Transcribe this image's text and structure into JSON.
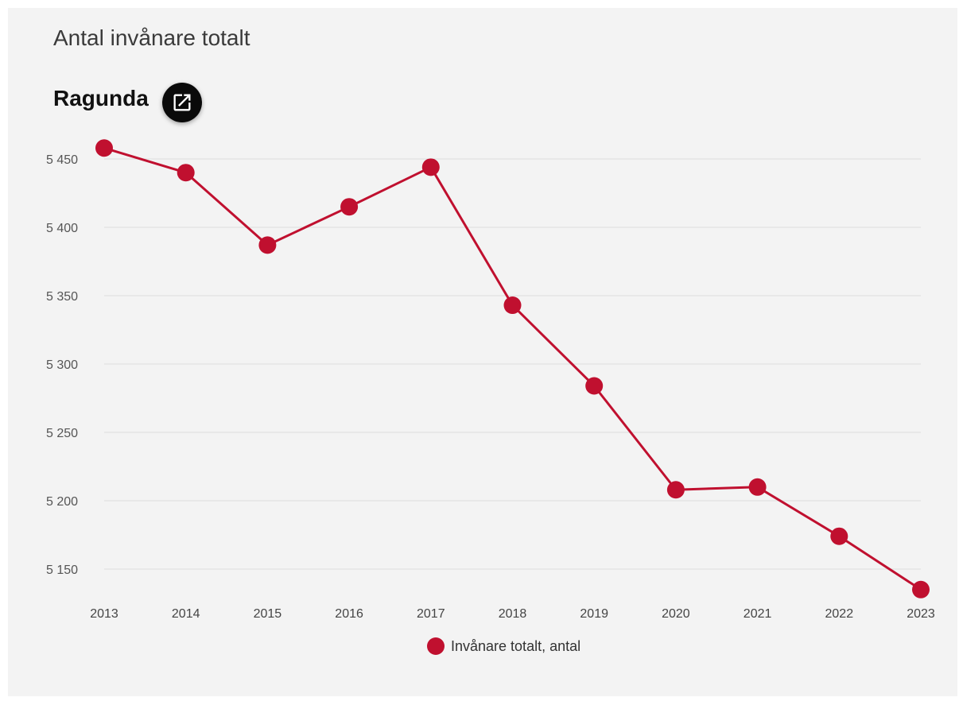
{
  "header": {
    "title": "Antal invånare totalt",
    "subtitle": "Ragunda",
    "open_icon": "open-external-icon"
  },
  "colors": {
    "series": "#c0102f",
    "grid": "#dddddd",
    "background": "#f3f3f3"
  },
  "chart_data": {
    "type": "line",
    "title": "Antal invånare totalt",
    "subtitle": "Ragunda",
    "xlabel": "",
    "ylabel": "",
    "categories": [
      "2013",
      "2014",
      "2015",
      "2016",
      "2017",
      "2018",
      "2019",
      "2020",
      "2021",
      "2022",
      "2023"
    ],
    "series": [
      {
        "name": "Invånare totalt, antal",
        "values": [
          5458,
          5440,
          5387,
          5415,
          5444,
          5343,
          5284,
          5208,
          5210,
          5174,
          5135
        ]
      }
    ],
    "y_ticks": [
      {
        "value": 5450,
        "label": "5 450"
      },
      {
        "value": 5400,
        "label": "5 400"
      },
      {
        "value": 5350,
        "label": "5 350"
      },
      {
        "value": 5300,
        "label": "5 300"
      },
      {
        "value": 5250,
        "label": "5 250"
      },
      {
        "value": 5200,
        "label": "5 200"
      },
      {
        "value": 5150,
        "label": "5 150"
      }
    ],
    "grid": true,
    "legend_position": "bottom-center"
  }
}
